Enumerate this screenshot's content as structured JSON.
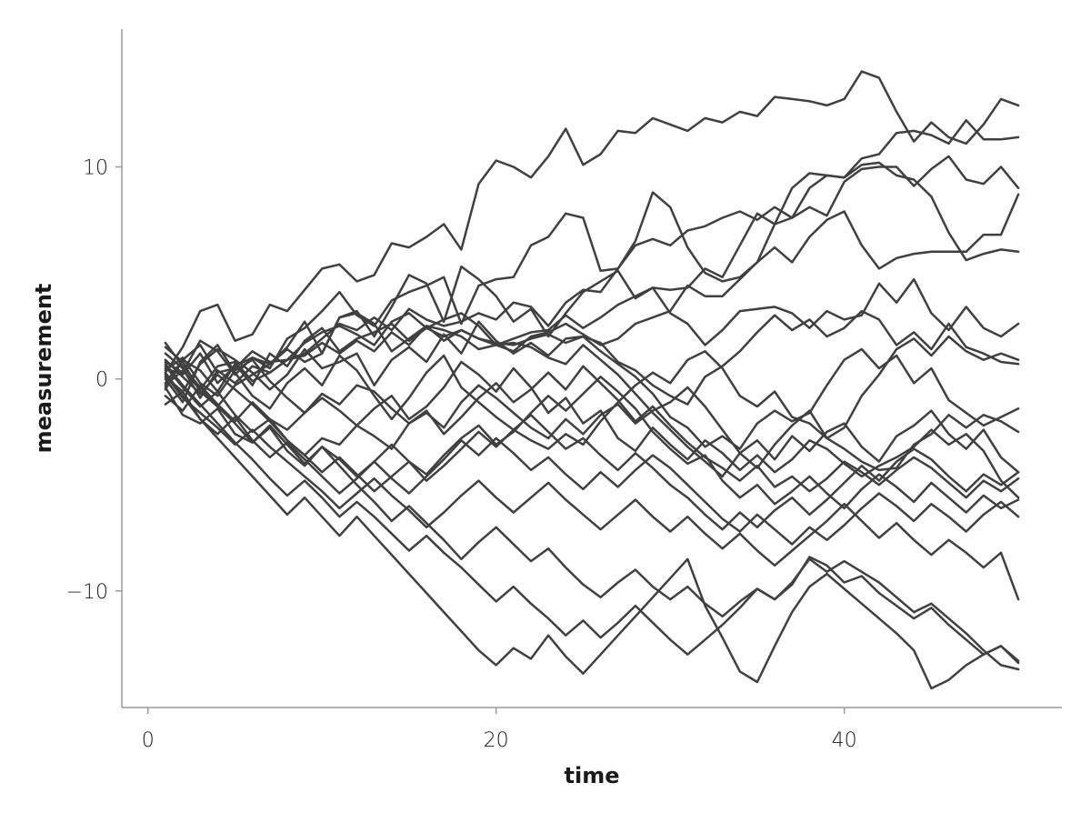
{
  "chart_data": {
    "type": "line",
    "title": "",
    "xlabel": "time",
    "ylabel": "measurement",
    "xlim": [
      -1.5,
      52.5
    ],
    "ylim": [
      -15.5,
      16.5
    ],
    "xticks": [
      0,
      20,
      40
    ],
    "xtick_labels": [
      "0",
      "20",
      "40"
    ],
    "yticks": [
      -10,
      0,
      10
    ],
    "ytick_labels": [
      "−10",
      "0",
      "10"
    ],
    "grid": false,
    "legend": "none",
    "line_color": "#404040",
    "x": [
      1,
      2,
      3,
      4,
      5,
      6,
      7,
      8,
      9,
      10,
      11,
      12,
      13,
      14,
      15,
      16,
      17,
      18,
      19,
      20,
      21,
      22,
      23,
      24,
      25,
      26,
      27,
      28,
      29,
      30,
      31,
      32,
      33,
      34,
      35,
      36,
      37,
      38,
      39,
      40,
      41,
      42,
      43,
      44,
      45,
      46,
      47,
      48,
      49,
      50
    ],
    "series": [
      {
        "values": [
          0.3,
          1.5,
          3.2,
          3.5,
          1.8,
          2.1,
          3.5,
          3.2,
          4.2,
          5.2,
          5.4,
          4.6,
          4.9,
          6.4,
          6.2,
          6.7,
          7.3,
          6.1,
          9.2,
          10.3,
          10.0,
          9.5,
          10.5,
          11.8,
          10.1,
          10.6,
          11.7,
          11.6,
          12.3,
          12.0,
          11.7,
          12.3,
          12.1,
          12.6,
          12.4,
          13.3,
          13.2,
          13.1,
          12.9,
          13.2,
          14.5,
          14.2,
          12.6,
          11.2,
          12.1,
          11.4,
          11.1,
          12.0,
          13.2,
          12.9
        ]
      },
      {
        "values": [
          0.5,
          0.2,
          1.2,
          -0.2,
          0.6,
          1.0,
          0.5,
          1.9,
          2.4,
          3.2,
          4.1,
          3.0,
          2.5,
          3.7,
          4.1,
          4.4,
          4.8,
          2.6,
          4.4,
          4.7,
          4.8,
          6.3,
          6.7,
          7.8,
          7.6,
          5.1,
          5.2,
          6.3,
          6.6,
          6.3,
          7.0,
          7.2,
          7.6,
          7.9,
          7.5,
          8.1,
          7.6,
          9.0,
          9.6,
          9.5,
          10.4,
          10.6,
          11.6,
          11.7,
          11.5,
          11.1,
          12.2,
          11.3,
          11.3,
          11.4
        ]
      },
      {
        "values": [
          -0.3,
          0.4,
          -0.5,
          0.6,
          0.8,
          -0.1,
          0.3,
          0.9,
          1.2,
          1.9,
          2.6,
          2.3,
          2.9,
          2.3,
          3.3,
          2.8,
          2.5,
          2.7,
          3.1,
          2.8,
          3.6,
          3.4,
          2.5,
          3.6,
          4.2,
          4.1,
          5.2,
          6.5,
          8.8,
          8.1,
          6.2,
          5.0,
          4.6,
          4.8,
          5.5,
          7.3,
          7.6,
          8.1,
          7.7,
          9.3,
          9.9,
          10.0,
          10.0,
          9.1,
          9.9,
          10.5,
          9.4,
          9.2,
          10.0,
          9.0
        ]
      },
      {
        "values": [
          1.5,
          0.8,
          -0.6,
          -1.3,
          -0.3,
          0.2,
          0.7,
          1.4,
          0.8,
          1.2,
          2.9,
          3.1,
          2.6,
          1.3,
          1.9,
          2.5,
          1.8,
          2.3,
          1.9,
          1.6,
          1.9,
          2.2,
          2.3,
          3.0,
          2.4,
          2.9,
          3.5,
          3.9,
          4.3,
          4.2,
          4.3,
          5.2,
          4.8,
          6.3,
          7.8,
          7.3,
          9.0,
          9.7,
          9.6,
          9.5,
          10.1,
          10.2,
          9.6,
          9.4,
          8.6,
          6.9,
          5.6,
          5.9,
          6.1,
          6.0
        ]
      },
      {
        "values": [
          -0.2,
          0.9,
          1.6,
          0.3,
          0.5,
          1.3,
          0.8,
          0.9,
          1.1,
          1.7,
          1.2,
          1.8,
          1.3,
          2.2,
          1.6,
          2.5,
          2.3,
          2.0,
          1.4,
          1.6,
          1.3,
          2.0,
          2.2,
          2.6,
          2.1,
          1.6,
          1.9,
          2.6,
          2.9,
          3.2,
          4.4,
          3.9,
          3.9,
          4.7,
          5.5,
          6.2,
          5.5,
          6.7,
          7.5,
          7.9,
          6.3,
          5.2,
          5.7,
          5.9,
          6.0,
          6.0,
          6.0,
          6.8,
          6.8,
          8.7
        ]
      },
      {
        "values": [
          0.8,
          0.3,
          1.8,
          1.3,
          0.2,
          1.0,
          0.7,
          1.5,
          2.7,
          1.2,
          2.9,
          3.2,
          2.0,
          3.4,
          4.9,
          4.5,
          2.7,
          5.3,
          4.7,
          3.9,
          2.7,
          3.3,
          2.0,
          3.1,
          4.1,
          4.6,
          5.1,
          3.8,
          4.3,
          3.1,
          2.6,
          1.6,
          2.3,
          3.2,
          3.3,
          3.4,
          3.1,
          2.4,
          3.2,
          2.8,
          3.0,
          4.5,
          3.6,
          4.7,
          3.1,
          2.3,
          3.4,
          2.4,
          2.0,
          2.6
        ]
      },
      {
        "values": [
          0.1,
          -0.6,
          0.7,
          1.4,
          0.9,
          0.3,
          -0.5,
          0.2,
          1.4,
          0.5,
          0.8,
          1.2,
          -0.3,
          0.9,
          1.5,
          0.8,
          2.1,
          1.2,
          2.7,
          1.8,
          1.2,
          1.7,
          1.1,
          1.9,
          2.0,
          1.7,
          0.8,
          0.4,
          -0.3,
          -0.8,
          -1.2,
          0.1,
          0.6,
          1.3,
          2.2,
          3.0,
          2.3,
          2.8,
          2.0,
          2.4,
          3.2,
          2.8,
          1.6,
          2.2,
          1.4,
          2.6,
          1.5,
          1.2,
          0.8,
          0.7
        ]
      },
      {
        "values": [
          -0.5,
          0.9,
          0.4,
          -0.6,
          0.7,
          -0.3,
          1.2,
          0.6,
          1.8,
          2.4,
          1.3,
          1.9,
          2.2,
          2.6,
          1.8,
          2.4,
          2.8,
          3.1,
          2.5,
          1.6,
          1.7,
          1.5,
          1.0,
          0.7,
          1.6,
          0.9,
          0.2,
          -0.7,
          -1.6,
          -2.4,
          -3.2,
          -3.9,
          -4.6,
          -3.5,
          -4.2,
          -3.1,
          -2.2,
          -1.5,
          -2.8,
          -2.3,
          -0.8,
          0.2,
          1.4,
          1.9,
          1.1,
          2.0,
          1.3,
          0.9,
          1.2,
          0.9
        ]
      },
      {
        "values": [
          1.2,
          0.5,
          -0.9,
          0.4,
          -0.2,
          0.6,
          0.3,
          0.9,
          1.7,
          2.2,
          2.5,
          2.1,
          1.6,
          2.7,
          3.1,
          2.4,
          2.0,
          2.3,
          1.9,
          1.7,
          1.6,
          1.9,
          2.1,
          1.7,
          2.0,
          1.3,
          0.7,
          0.1,
          -0.7,
          -1.8,
          -2.3,
          -3.2,
          -2.7,
          -3.3,
          -2.1,
          -1.5,
          -2.0,
          -1.6,
          -0.3,
          0.9,
          1.4,
          0.5,
          1.1,
          -0.2,
          0.5,
          -1.0,
          -1.6,
          -2.2,
          -1.8,
          -1.4
        ]
      },
      {
        "values": [
          0.0,
          -1.1,
          0.8,
          1.6,
          0.3,
          -0.8,
          -1.4,
          -0.2,
          0.5,
          -0.3,
          1.1,
          0.4,
          -0.8,
          -1.9,
          -0.9,
          0.3,
          1.1,
          -0.4,
          -1.1,
          -1.8,
          -2.4,
          -2.9,
          -3.3,
          -2.6,
          -3.1,
          -2.0,
          -1.1,
          -0.3,
          0.3,
          -0.2,
          0.9,
          1.3,
          0.5,
          -0.8,
          -1.3,
          -0.6,
          -1.8,
          -2.1,
          -2.8,
          -3.3,
          -3.9,
          -4.3,
          -4.2,
          -3.1,
          -2.6,
          -1.7,
          -2.3,
          -1.7,
          -2.0,
          -2.5
        ]
      },
      {
        "values": [
          0.4,
          1.0,
          -0.2,
          -0.8,
          0.4,
          0.9,
          -0.1,
          -0.9,
          -1.6,
          -0.7,
          -1.2,
          -0.3,
          -0.6,
          -1.4,
          -2.1,
          -1.6,
          -2.3,
          -1.1,
          -0.3,
          -0.9,
          -1.6,
          -2.3,
          -2.8,
          -1.9,
          -2.6,
          -1.7,
          -1.2,
          -2.1,
          -1.5,
          -1.1,
          -0.4,
          -1.3,
          -2.4,
          -3.5,
          -2.9,
          -3.8,
          -2.7,
          -3.4,
          -2.5,
          -2.1,
          -3.2,
          -3.9,
          -2.7,
          -2.2,
          -1.5,
          -2.6,
          -3.3,
          -2.4,
          -3.7,
          -4.4
        ]
      },
      {
        "values": [
          -0.8,
          -1.5,
          -0.3,
          -1.2,
          -2.0,
          -1.1,
          -1.9,
          -2.4,
          -1.6,
          -0.9,
          -1.5,
          -2.2,
          -1.4,
          -0.8,
          -1.9,
          -1.3,
          -0.4,
          0.8,
          0.2,
          -0.6,
          0.5,
          -0.4,
          -1.6,
          -0.9,
          -2.1,
          -1.5,
          -2.8,
          -3.4,
          -2.3,
          -3.1,
          -3.8,
          -2.9,
          -3.5,
          -4.3,
          -3.6,
          -4.4,
          -3.8,
          -2.9,
          -3.3,
          -4.0,
          -4.6,
          -4.1,
          -3.7,
          -3.2,
          -2.4,
          -3.1,
          -2.6,
          -3.4,
          -4.8,
          -5.6
        ]
      },
      {
        "values": [
          0.6,
          -0.4,
          -1.3,
          -0.6,
          -1.7,
          -2.5,
          -1.9,
          -2.9,
          -3.6,
          -2.8,
          -3.1,
          -2.2,
          -2.7,
          -3.3,
          -2.1,
          -1.5,
          -2.6,
          -1.8,
          -0.9,
          -0.2,
          -1.1,
          -0.5,
          0.3,
          -0.5,
          0.6,
          -0.2,
          -1.0,
          -2.0,
          -1.3,
          -2.2,
          -3.0,
          -3.7,
          -4.2,
          -4.8,
          -4.1,
          -5.1,
          -4.6,
          -5.3,
          -4.7,
          -3.9,
          -4.4,
          -5.0,
          -4.3,
          -3.7,
          -4.2,
          -4.9,
          -5.6,
          -4.8,
          -5.3,
          -4.7
        ]
      },
      {
        "values": [
          -0.4,
          -1.7,
          -2.1,
          -1.4,
          -2.6,
          -3.0,
          -2.3,
          -3.4,
          -4.1,
          -3.2,
          -3.8,
          -4.6,
          -3.9,
          -3.1,
          -3.9,
          -4.5,
          -3.6,
          -2.8,
          -2.2,
          -3.1,
          -2.5,
          -1.6,
          -0.8,
          -1.5,
          -0.7,
          0.1,
          -0.6,
          -1.4,
          -2.5,
          -3.3,
          -4.0,
          -3.6,
          -4.8,
          -5.6,
          -5.0,
          -5.9,
          -5.3,
          -4.6,
          -5.4,
          -6.1,
          -5.2,
          -4.5,
          -5.1,
          -5.8,
          -4.9,
          -5.6,
          -6.3,
          -5.5,
          -6.1,
          -5.7
        ]
      },
      {
        "values": [
          0.9,
          0.1,
          -0.7,
          0.2,
          -0.5,
          -1.2,
          -2.0,
          -2.9,
          -3.6,
          -4.4,
          -3.7,
          -4.5,
          -5.3,
          -4.6,
          -3.9,
          -4.8,
          -4.1,
          -3.3,
          -2.5,
          -3.2,
          -2.4,
          -1.7,
          -2.5,
          -3.3,
          -2.8,
          -3.6,
          -4.3,
          -3.5,
          -4.2,
          -5.0,
          -5.6,
          -6.4,
          -7.1,
          -6.3,
          -7.0,
          -6.2,
          -5.6,
          -6.4,
          -5.7,
          -4.9,
          -4.1,
          -4.8,
          -3.9,
          -3.3,
          -3.8,
          -4.6,
          -5.3,
          -4.5,
          -5.0,
          -4.4
        ]
      },
      {
        "values": [
          -1.2,
          -0.6,
          -1.9,
          -2.6,
          -1.8,
          -2.9,
          -3.7,
          -3.0,
          -3.8,
          -4.6,
          -5.4,
          -4.7,
          -3.9,
          -4.7,
          -5.4,
          -4.6,
          -3.8,
          -2.9,
          -3.6,
          -2.8,
          -3.5,
          -4.3,
          -3.7,
          -4.5,
          -5.2,
          -4.4,
          -5.1,
          -4.3,
          -3.6,
          -4.2,
          -5.0,
          -5.8,
          -6.6,
          -7.2,
          -6.4,
          -7.1,
          -7.8,
          -7.0,
          -7.6,
          -6.9,
          -6.1,
          -5.4,
          -6.0,
          -6.7,
          -5.9,
          -6.5,
          -7.2,
          -6.4,
          -5.8,
          -6.5
        ]
      },
      {
        "values": [
          0.2,
          -0.9,
          -1.6,
          -2.3,
          -3.1,
          -2.4,
          -3.2,
          -3.9,
          -4.6,
          -5.3,
          -6.1,
          -5.4,
          -4.7,
          -5.5,
          -6.2,
          -7.0,
          -6.3,
          -5.5,
          -4.8,
          -5.6,
          -6.3,
          -5.6,
          -4.9,
          -5.7,
          -6.4,
          -7.1,
          -6.4,
          -5.7,
          -6.5,
          -7.2,
          -6.5,
          -7.3,
          -8.0,
          -7.3,
          -8.1,
          -8.8,
          -8.1,
          -7.4,
          -6.7,
          -5.9,
          -6.7,
          -7.5,
          -6.8,
          -7.6,
          -8.3,
          -7.6,
          -8.2,
          -8.9,
          -8.2,
          -10.4
        ]
      },
      {
        "values": [
          1.7,
          0.6,
          -0.4,
          -1.3,
          -2.1,
          -3.0,
          -2.2,
          -3.1,
          -4.0,
          -3.2,
          -4.1,
          -5.0,
          -5.8,
          -6.7,
          -6.0,
          -6.8,
          -7.6,
          -8.5,
          -7.7,
          -7.0,
          -7.8,
          -8.6,
          -8.0,
          -8.9,
          -9.7,
          -10.3,
          -9.6,
          -9.0,
          -9.8,
          -10.4,
          -9.8,
          -10.6,
          -11.2,
          -10.5,
          -9.9,
          -10.4,
          -9.7,
          -8.4,
          -8.8,
          -9.6,
          -9.3,
          -10.1,
          -10.7,
          -11.3,
          -10.8,
          -11.6,
          -12.3,
          -13.0,
          -12.6,
          -13.4
        ]
      },
      {
        "values": [
          0.7,
          -0.3,
          -1.2,
          -2.1,
          -3.0,
          -3.8,
          -4.7,
          -5.5,
          -4.8,
          -5.6,
          -6.5,
          -5.8,
          -6.5,
          -7.3,
          -8.1,
          -7.4,
          -8.2,
          -8.9,
          -9.7,
          -10.5,
          -9.8,
          -10.6,
          -11.3,
          -12.1,
          -11.4,
          -12.2,
          -11.5,
          -10.7,
          -11.5,
          -12.3,
          -13.0,
          -12.3,
          -11.6,
          -10.8,
          -9.9,
          -10.4,
          -9.6,
          -8.5,
          -9.1,
          -8.6,
          -9.1,
          -9.6,
          -10.3,
          -11.0,
          -10.6,
          -11.3,
          -12.0,
          -12.8,
          -13.5,
          -13.7
        ]
      },
      {
        "values": [
          0.3,
          -0.8,
          -1.9,
          -2.8,
          -3.7,
          -4.6,
          -5.5,
          -6.4,
          -5.6,
          -6.5,
          -7.4,
          -6.5,
          -7.4,
          -8.3,
          -9.2,
          -10.1,
          -11.0,
          -11.9,
          -12.8,
          -13.5,
          -12.7,
          -13.2,
          -12.1,
          -13.1,
          -13.9,
          -13.0,
          -12.1,
          -11.2,
          -10.3,
          -9.4,
          -8.5,
          -10.7,
          -12.2,
          -13.8,
          -14.3,
          -12.6,
          -11.0,
          -9.8,
          -9.2,
          -9.9,
          -10.6,
          -11.3,
          -12.0,
          -12.8,
          -14.6,
          -14.2,
          -13.5,
          -13.0,
          -12.6,
          -13.3
        ]
      }
    ]
  }
}
